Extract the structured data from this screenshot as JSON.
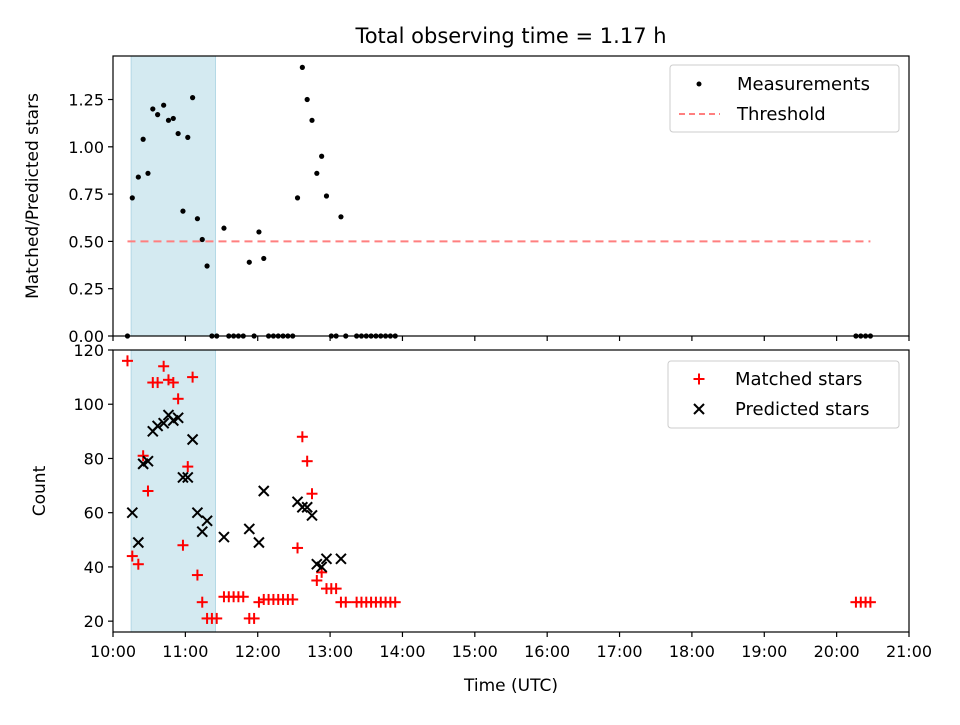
{
  "chart_data": [
    {
      "type": "scatter",
      "title": "Total observing time = 1.17 h",
      "xlabel": "",
      "ylabel": "Matched/Predicted stars",
      "xlim": [
        "10:00",
        "21:00"
      ],
      "ylim": [
        0,
        1.48
      ],
      "y_ticks": [
        "0.00",
        "0.25",
        "0.50",
        "0.75",
        "1.00",
        "1.25"
      ],
      "legend_position": "top-right",
      "shaded_region": {
        "x_start": "10:15",
        "x_end": "11:25",
        "color": "#d4eaf1"
      },
      "series": [
        {
          "name": "Measurements",
          "marker": "dot",
          "color": "#000000",
          "points": [
            [
              "10:12",
              0.0
            ],
            [
              "10:16",
              0.73
            ],
            [
              "10:21",
              0.84
            ],
            [
              "10:25",
              1.04
            ],
            [
              "10:29",
              0.86
            ],
            [
              "10:33",
              1.2
            ],
            [
              "10:37",
              1.17
            ],
            [
              "10:42",
              1.22
            ],
            [
              "10:46",
              1.14
            ],
            [
              "10:50",
              1.15
            ],
            [
              "10:54",
              1.07
            ],
            [
              "10:58",
              0.66
            ],
            [
              "11:02",
              1.05
            ],
            [
              "11:06",
              1.26
            ],
            [
              "11:10",
              0.62
            ],
            [
              "11:14",
              0.51
            ],
            [
              "11:18",
              0.37
            ],
            [
              "11:22",
              0.0
            ],
            [
              "11:26",
              0.0
            ],
            [
              "11:32",
              0.57
            ],
            [
              "11:36",
              0.0
            ],
            [
              "11:40",
              0.0
            ],
            [
              "11:44",
              0.0
            ],
            [
              "11:48",
              0.0
            ],
            [
              "11:53",
              0.39
            ],
            [
              "11:57",
              0.0
            ],
            [
              "12:01",
              0.55
            ],
            [
              "12:05",
              0.41
            ],
            [
              "12:09",
              0.0
            ],
            [
              "12:13",
              0.0
            ],
            [
              "12:17",
              0.0
            ],
            [
              "12:21",
              0.0
            ],
            [
              "12:25",
              0.0
            ],
            [
              "12:29",
              0.0
            ],
            [
              "12:33",
              0.73
            ],
            [
              "12:37",
              1.42
            ],
            [
              "12:41",
              1.25
            ],
            [
              "12:45",
              1.14
            ],
            [
              "12:49",
              0.86
            ],
            [
              "12:53",
              0.95
            ],
            [
              "12:57",
              0.74
            ],
            [
              "13:01",
              0.0
            ],
            [
              "13:05",
              0.0
            ],
            [
              "13:09",
              0.63
            ],
            [
              "13:13",
              0.0
            ],
            [
              "13:22",
              0.0
            ],
            [
              "13:26",
              0.0
            ],
            [
              "13:30",
              0.0
            ],
            [
              "13:34",
              0.0
            ],
            [
              "13:38",
              0.0
            ],
            [
              "13:42",
              0.0
            ],
            [
              "13:46",
              0.0
            ],
            [
              "13:50",
              0.0
            ],
            [
              "13:54",
              0.0
            ],
            [
              "20:16",
              0.0
            ],
            [
              "20:20",
              0.0
            ],
            [
              "20:24",
              0.0
            ],
            [
              "20:28",
              0.0
            ]
          ]
        },
        {
          "name": "Threshold",
          "marker": "dashed-line",
          "color": "#ff7f7f",
          "points": [
            [
              "10:12",
              0.5
            ],
            [
              "20:28",
              0.5
            ]
          ]
        }
      ]
    },
    {
      "type": "scatter",
      "title": "",
      "xlabel": "Time (UTC)",
      "ylabel": "Count",
      "xlim": [
        "10:00",
        "21:00"
      ],
      "ylim": [
        16,
        120
      ],
      "y_ticks": [
        "20",
        "40",
        "60",
        "80",
        "100",
        "120"
      ],
      "x_ticks": [
        "10:00",
        "11:00",
        "12:00",
        "13:00",
        "14:00",
        "15:00",
        "16:00",
        "17:00",
        "18:00",
        "19:00",
        "20:00",
        "21:00"
      ],
      "legend_position": "top-right",
      "shaded_region": {
        "x_start": "10:15",
        "x_end": "11:25",
        "color": "#d4eaf1"
      },
      "series": [
        {
          "name": "Matched stars",
          "marker": "plus",
          "color": "#ff0000",
          "points": [
            [
              "10:12",
              116
            ],
            [
              "10:16",
              44
            ],
            [
              "10:21",
              41
            ],
            [
              "10:25",
              81
            ],
            [
              "10:29",
              68
            ],
            [
              "10:33",
              108
            ],
            [
              "10:37",
              108
            ],
            [
              "10:42",
              114
            ],
            [
              "10:46",
              109
            ],
            [
              "10:50",
              108
            ],
            [
              "10:54",
              102
            ],
            [
              "10:58",
              48
            ],
            [
              "11:02",
              77
            ],
            [
              "11:06",
              110
            ],
            [
              "11:10",
              37
            ],
            [
              "11:14",
              27
            ],
            [
              "11:18",
              21
            ],
            [
              "11:22",
              21
            ],
            [
              "11:26",
              21
            ],
            [
              "11:32",
              29
            ],
            [
              "11:36",
              29
            ],
            [
              "11:40",
              29
            ],
            [
              "11:44",
              29
            ],
            [
              "11:48",
              29
            ],
            [
              "11:53",
              21
            ],
            [
              "11:57",
              21
            ],
            [
              "12:01",
              27
            ],
            [
              "12:05",
              28
            ],
            [
              "12:09",
              28
            ],
            [
              "12:13",
              28
            ],
            [
              "12:17",
              28
            ],
            [
              "12:21",
              28
            ],
            [
              "12:25",
              28
            ],
            [
              "12:29",
              28
            ],
            [
              "12:33",
              47
            ],
            [
              "12:37",
              88
            ],
            [
              "12:41",
              79
            ],
            [
              "12:45",
              67
            ],
            [
              "12:49",
              35
            ],
            [
              "12:53",
              38
            ],
            [
              "12:57",
              32
            ],
            [
              "13:01",
              32
            ],
            [
              "13:05",
              32
            ],
            [
              "13:09",
              27
            ],
            [
              "13:13",
              27
            ],
            [
              "13:22",
              27
            ],
            [
              "13:26",
              27
            ],
            [
              "13:30",
              27
            ],
            [
              "13:34",
              27
            ],
            [
              "13:38",
              27
            ],
            [
              "13:42",
              27
            ],
            [
              "13:46",
              27
            ],
            [
              "13:50",
              27
            ],
            [
              "13:54",
              27
            ],
            [
              "20:16",
              27
            ],
            [
              "20:20",
              27
            ],
            [
              "20:24",
              27
            ],
            [
              "20:28",
              27
            ]
          ]
        },
        {
          "name": "Predicted stars",
          "marker": "x",
          "color": "#000000",
          "points": [
            [
              "10:16",
              60
            ],
            [
              "10:21",
              49
            ],
            [
              "10:25",
              78
            ],
            [
              "10:29",
              79
            ],
            [
              "10:33",
              90
            ],
            [
              "10:37",
              92
            ],
            [
              "10:42",
              93
            ],
            [
              "10:46",
              96
            ],
            [
              "10:50",
              94
            ],
            [
              "10:54",
              95
            ],
            [
              "10:58",
              73
            ],
            [
              "11:02",
              73
            ],
            [
              "11:06",
              87
            ],
            [
              "11:10",
              60
            ],
            [
              "11:14",
              53
            ],
            [
              "11:18",
              57
            ],
            [
              "11:32",
              51
            ],
            [
              "11:53",
              54
            ],
            [
              "12:01",
              49
            ],
            [
              "12:05",
              68
            ],
            [
              "12:33",
              64
            ],
            [
              "12:37",
              62
            ],
            [
              "12:41",
              62
            ],
            [
              "12:45",
              59
            ],
            [
              "12:49",
              41
            ],
            [
              "12:53",
              40
            ],
            [
              "12:57",
              43
            ],
            [
              "13:09",
              43
            ]
          ]
        }
      ]
    }
  ]
}
